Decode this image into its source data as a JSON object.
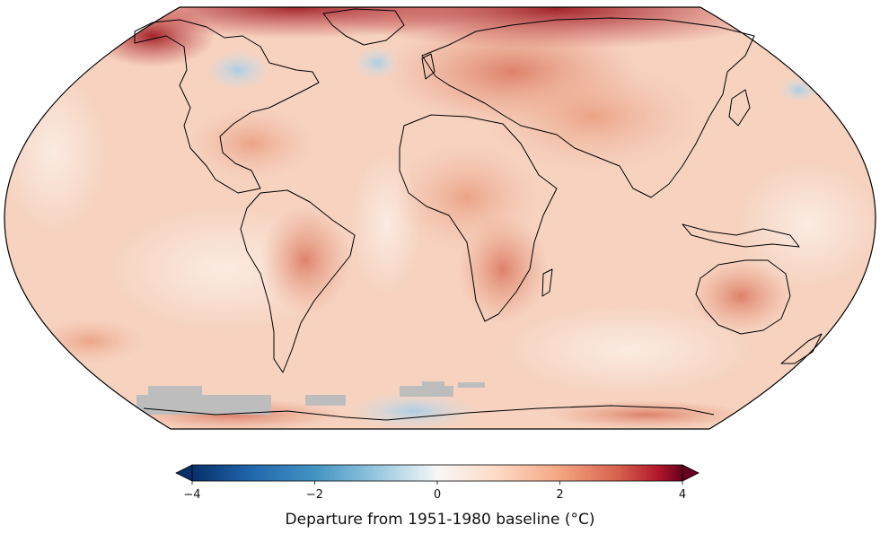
{
  "map": {
    "projection": "robinson",
    "colormap": "RdBu_r",
    "no_data_color": "#bdbdbd",
    "coastline_color": "#000000"
  },
  "colorbar": {
    "title": "Departure from 1951-1980 baseline (°C)",
    "range": [
      -4,
      4
    ],
    "extend": "both",
    "ticks": [
      "−4",
      "−2",
      "0",
      "2",
      "4"
    ],
    "colors": [
      "#08306b",
      "#2166ac",
      "#4393c3",
      "#92c5de",
      "#f7f7f7",
      "#fddbc7",
      "#f4a582",
      "#d6604d",
      "#b2182b",
      "#67001f"
    ]
  }
}
